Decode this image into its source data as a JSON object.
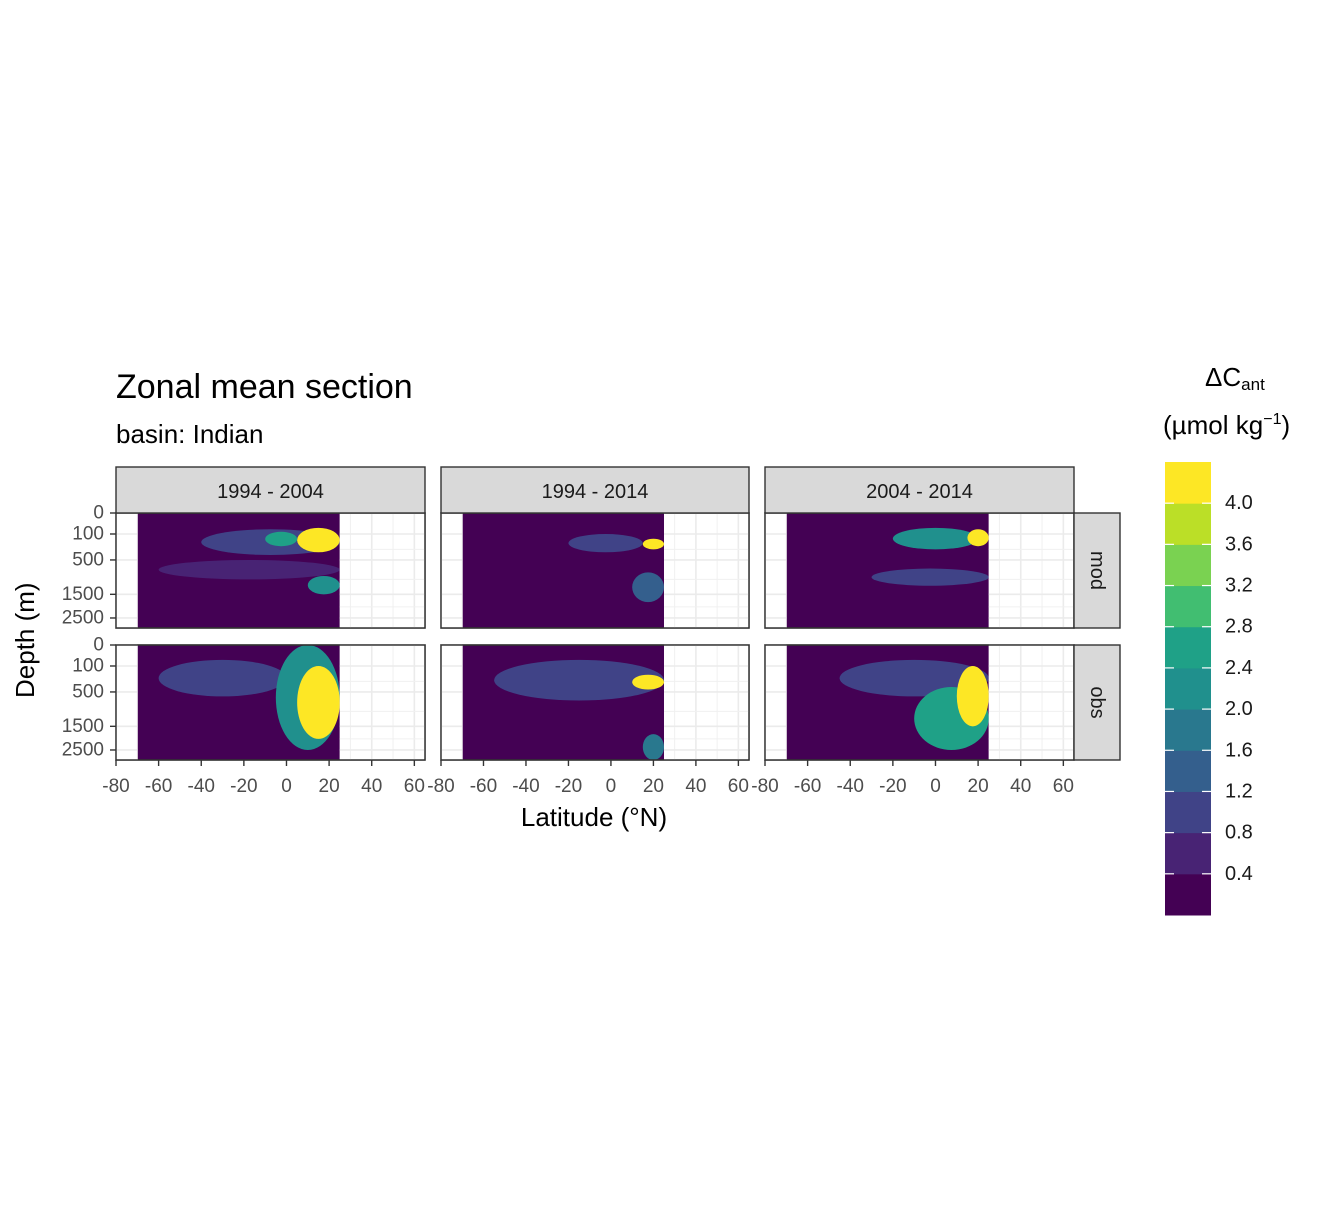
{
  "title": "Zonal mean section",
  "subtitle": "basin: Indian",
  "chart_data": {
    "type": "heatmap",
    "xlabel": "Latitude (°N)",
    "ylabel": "Depth (m)",
    "xlim": [
      -80,
      65
    ],
    "x_ticks": [
      "-80",
      "-60",
      "-40",
      "-20",
      "0",
      "20",
      "40",
      "60"
    ],
    "x_tick_values": [
      -80,
      -60,
      -40,
      -20,
      0,
      20,
      40,
      60
    ],
    "y_ticks": [
      "0",
      "100",
      "500",
      "1500",
      "2500"
    ],
    "y_tick_values": [
      0,
      100,
      500,
      1500,
      2500
    ],
    "y_scale": "reversed sqrt",
    "columns": [
      "1994 - 2004",
      "1994 - 2014",
      "2004 - 2014"
    ],
    "rows": [
      "mod",
      "obs"
    ],
    "data_lat_range": [
      -70,
      25
    ],
    "legend": {
      "title_main": "ΔC",
      "title_sub": "ant",
      "title_unit": "(µmol kg",
      "title_sup": "−1",
      "title_close": ")",
      "labels": [
        "4.0",
        "3.6",
        "3.2",
        "2.8",
        "2.4",
        "2.0",
        "1.6",
        "1.2",
        "0.8",
        "0.4"
      ],
      "bins": [
        "0-0.4",
        "0.4-0.8",
        "0.8-1.2",
        "1.2-1.6",
        "1.6-2.0",
        "2.0-2.4",
        "2.4-2.8",
        "2.8-3.2",
        "3.2-3.6",
        "3.6-4.0",
        "4.0-4.4"
      ],
      "colors": [
        "#440154",
        "#482374",
        "#404387",
        "#345F8D",
        "#29788E",
        "#20908D",
        "#1FA187",
        "#41BE71",
        "#7AD251",
        "#BBDF27",
        "#FDE725"
      ]
    },
    "panels": [
      {
        "column": "1994 - 2004",
        "row": "mod",
        "features": [
          {
            "lat": [
              5,
              25
            ],
            "depth": [
              50,
              350
            ],
            "level": 4.2
          },
          {
            "lat": [
              -10,
              5
            ],
            "depth": [
              80,
              250
            ],
            "level": 2.6
          },
          {
            "lat": [
              -40,
              25
            ],
            "depth": [
              60,
              400
            ],
            "level": 1.0
          },
          {
            "lat": [
              10,
              25
            ],
            "depth": [
              900,
              1500
            ],
            "level": 2.4
          },
          {
            "lat": [
              -60,
              25
            ],
            "depth": [
              500,
              1000
            ],
            "level": 0.6
          }
        ]
      },
      {
        "column": "1994 - 2014",
        "row": "mod",
        "features": [
          {
            "lat": [
              15,
              25
            ],
            "depth": [
              150,
              300
            ],
            "level": 4.2
          },
          {
            "lat": [
              -20,
              15
            ],
            "depth": [
              100,
              350
            ],
            "level": 1.2
          },
          {
            "lat": [
              10,
              25
            ],
            "depth": [
              800,
              1800
            ],
            "level": 1.4
          }
        ]
      },
      {
        "column": "2004 - 2014",
        "row": "mod",
        "features": [
          {
            "lat": [
              15,
              25
            ],
            "depth": [
              60,
              250
            ],
            "level": 4.2
          },
          {
            "lat": [
              -20,
              20
            ],
            "depth": [
              50,
              300
            ],
            "level": 2.2
          },
          {
            "lat": [
              -30,
              25
            ],
            "depth": [
              700,
              1200
            ],
            "level": 1.2
          }
        ]
      },
      {
        "column": "1994 - 2004",
        "row": "obs",
        "features": [
          {
            "lat": [
              5,
              25
            ],
            "depth": [
              100,
              2000
            ],
            "level": 4.2
          },
          {
            "lat": [
              -5,
              25
            ],
            "depth": [
              0,
              2500
            ],
            "level": 2.0
          },
          {
            "lat": [
              -60,
              0
            ],
            "depth": [
              50,
              600
            ],
            "level": 1.2
          }
        ]
      },
      {
        "column": "1994 - 2014",
        "row": "obs",
        "features": [
          {
            "lat": [
              10,
              25
            ],
            "depth": [
              200,
              450
            ],
            "level": 4.2
          },
          {
            "lat": [
              -55,
              25
            ],
            "depth": [
              50,
              700
            ],
            "level": 1.0
          },
          {
            "lat": [
              15,
              25
            ],
            "depth": [
              1800,
              3000
            ],
            "level": 1.6
          }
        ]
      },
      {
        "column": "2004 - 2014",
        "row": "obs",
        "features": [
          {
            "lat": [
              10,
              25
            ],
            "depth": [
              100,
              1500
            ],
            "level": 4.2
          },
          {
            "lat": [
              -10,
              25
            ],
            "depth": [
              400,
              2500
            ],
            "level": 2.6
          },
          {
            "lat": [
              -45,
              25
            ],
            "depth": [
              50,
              600
            ],
            "level": 1.2
          }
        ]
      }
    ]
  }
}
